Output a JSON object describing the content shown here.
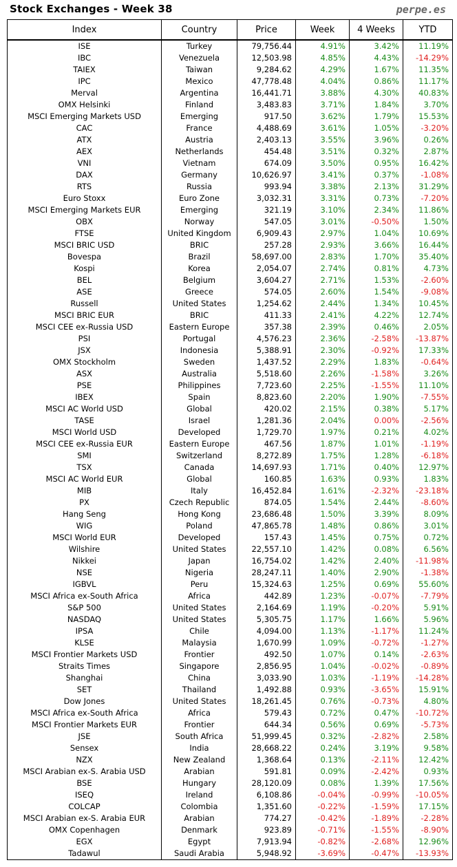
{
  "header": {
    "title": "Stock Exchanges - Week 38",
    "site": "perpe.es"
  },
  "colors": {
    "positive": "#1a8c1a",
    "negative": "#e02020"
  },
  "table": {
    "columns": [
      "Index",
      "Country",
      "Price",
      "Week",
      "4 Weeks",
      "YTD"
    ],
    "rows": [
      [
        "ISE",
        "Turkey",
        "79,756.44",
        "4.91%",
        "3.42%",
        "11.19%"
      ],
      [
        "IBC",
        "Venezuela",
        "12,503.98",
        "4.85%",
        "4.43%",
        "-14.29%"
      ],
      [
        "TAIEX",
        "Taiwan",
        "9,284.62",
        "4.29%",
        "1.67%",
        "11.35%"
      ],
      [
        "IPC",
        "Mexico",
        "47,778.48",
        "4.04%",
        "0.86%",
        "11.17%"
      ],
      [
        "Merval",
        "Argentina",
        "16,441.71",
        "3.88%",
        "4.30%",
        "40.83%"
      ],
      [
        "OMX Helsinki",
        "Finland",
        "3,483.83",
        "3.71%",
        "1.84%",
        "3.70%"
      ],
      [
        "MSCI Emerging Markets USD",
        "Emerging",
        "917.50",
        "3.62%",
        "1.79%",
        "15.53%"
      ],
      [
        "CAC",
        "France",
        "4,488.69",
        "3.61%",
        "1.05%",
        "-3.20%"
      ],
      [
        "ATX",
        "Austria",
        "2,403.13",
        "3.55%",
        "3.96%",
        "0.26%"
      ],
      [
        "AEX",
        "Netherlands",
        "454.48",
        "3.51%",
        "0.32%",
        "2.87%"
      ],
      [
        "VNI",
        "Vietnam",
        "674.09",
        "3.50%",
        "0.95%",
        "16.42%"
      ],
      [
        "DAX",
        "Germany",
        "10,626.97",
        "3.41%",
        "0.37%",
        "-1.08%"
      ],
      [
        "RTS",
        "Russia",
        "993.94",
        "3.38%",
        "2.13%",
        "31.29%"
      ],
      [
        "Euro Stoxx",
        "Euro Zone",
        "3,032.31",
        "3.31%",
        "0.73%",
        "-7.20%"
      ],
      [
        "MSCI Emerging Markets EUR",
        "Emerging",
        "321.19",
        "3.10%",
        "2.34%",
        "11.86%"
      ],
      [
        "OBX",
        "Norway",
        "547.05",
        "3.01%",
        "-0.50%",
        "1.50%"
      ],
      [
        "FTSE",
        "United Kingdom",
        "6,909.43",
        "2.97%",
        "1.04%",
        "10.69%"
      ],
      [
        "MSCI BRIC USD",
        "BRIC",
        "257.28",
        "2.93%",
        "3.66%",
        "16.44%"
      ],
      [
        "Bovespa",
        "Brazil",
        "58,697.00",
        "2.83%",
        "1.70%",
        "35.40%"
      ],
      [
        "Kospi",
        "Korea",
        "2,054.07",
        "2.74%",
        "0.81%",
        "4.73%"
      ],
      [
        "BEL",
        "Belgium",
        "3,604.27",
        "2.71%",
        "1.53%",
        "-2.60%"
      ],
      [
        "ASE",
        "Greece",
        "574.05",
        "2.60%",
        "1.54%",
        "-9.08%"
      ],
      [
        "Russell",
        "United States",
        "1,254.62",
        "2.44%",
        "1.34%",
        "10.45%"
      ],
      [
        "MSCI BRIC EUR",
        "BRIC",
        "411.33",
        "2.41%",
        "4.22%",
        "12.74%"
      ],
      [
        "MSCI CEE ex-Russia USD",
        "Eastern Europe",
        "357.38",
        "2.39%",
        "0.46%",
        "2.05%"
      ],
      [
        "PSI",
        "Portugal",
        "4,576.23",
        "2.36%",
        "-2.58%",
        "-13.87%"
      ],
      [
        "JSX",
        "Indonesia",
        "5,388.91",
        "2.30%",
        "-0.92%",
        "17.33%"
      ],
      [
        "OMX Stockholm",
        "Sweden",
        "1,437.52",
        "2.29%",
        "1.83%",
        "-0.64%"
      ],
      [
        "ASX",
        "Australia",
        "5,518.60",
        "2.26%",
        "-1.58%",
        "3.26%"
      ],
      [
        "PSE",
        "Philippines",
        "7,723.60",
        "2.25%",
        "-1.55%",
        "11.10%"
      ],
      [
        "IBEX",
        "Spain",
        "8,823.60",
        "2.20%",
        "1.90%",
        "-7.55%"
      ],
      [
        "MSCI AC World USD",
        "Global",
        "420.02",
        "2.15%",
        "0.38%",
        "5.17%"
      ],
      [
        "TASE",
        "Israel",
        "1,281.36",
        "2.04%",
        "0.00%",
        "-2.56%"
      ],
      [
        "MSCI World USD",
        "Developed",
        "1,729.70",
        "1.97%",
        "0.21%",
        "4.02%"
      ],
      [
        "MSCI CEE ex-Russia EUR",
        "Eastern Europe",
        "467.56",
        "1.87%",
        "1.01%",
        "-1.19%"
      ],
      [
        "SMI",
        "Switzerland",
        "8,272.89",
        "1.75%",
        "1.28%",
        "-6.18%"
      ],
      [
        "TSX",
        "Canada",
        "14,697.93",
        "1.71%",
        "0.40%",
        "12.97%"
      ],
      [
        "MSCI AC World EUR",
        "Global",
        "160.85",
        "1.63%",
        "0.93%",
        "1.83%"
      ],
      [
        "MIB",
        "Italy",
        "16,452.84",
        "1.61%",
        "-2.32%",
        "-23.18%"
      ],
      [
        "PX",
        "Czech Republic",
        "874.05",
        "1.54%",
        "2.44%",
        "-8.60%"
      ],
      [
        "Hang Seng",
        "Hong Kong",
        "23,686.48",
        "1.50%",
        "3.39%",
        "8.09%"
      ],
      [
        "WIG",
        "Poland",
        "47,865.78",
        "1.48%",
        "0.86%",
        "3.01%"
      ],
      [
        "MSCI World EUR",
        "Developed",
        "157.43",
        "1.45%",
        "0.75%",
        "0.72%"
      ],
      [
        "Wilshire",
        "United States",
        "22,557.10",
        "1.42%",
        "0.08%",
        "6.56%"
      ],
      [
        "Nikkei",
        "Japan",
        "16,754.02",
        "1.42%",
        "2.40%",
        "-11.98%"
      ],
      [
        "NSE",
        "Nigeria",
        "28,247.11",
        "1.40%",
        "2.90%",
        "-1.38%"
      ],
      [
        "IGBVL",
        "Peru",
        "15,324.63",
        "1.25%",
        "0.69%",
        "55.60%"
      ],
      [
        "MSCI Africa ex-South Africa",
        "Africa",
        "442.89",
        "1.23%",
        "-0.07%",
        "-7.79%"
      ],
      [
        "S&P 500",
        "United States",
        "2,164.69",
        "1.19%",
        "-0.20%",
        "5.91%"
      ],
      [
        "NASDAQ",
        "United States",
        "5,305.75",
        "1.17%",
        "1.66%",
        "5.96%"
      ],
      [
        "IPSA",
        "Chile",
        "4,094.00",
        "1.13%",
        "-1.17%",
        "11.24%"
      ],
      [
        "KLSE",
        "Malaysia",
        "1,670.99",
        "1.09%",
        "-0.72%",
        "-1.27%"
      ],
      [
        "MSCI Frontier Markets USD",
        "Frontier",
        "492.50",
        "1.07%",
        "0.14%",
        "-2.63%"
      ],
      [
        "Straits Times",
        "Singapore",
        "2,856.95",
        "1.04%",
        "-0.02%",
        "-0.89%"
      ],
      [
        "Shanghai",
        "China",
        "3,033.90",
        "1.03%",
        "-1.19%",
        "-14.28%"
      ],
      [
        "SET",
        "Thailand",
        "1,492.88",
        "0.93%",
        "-3.65%",
        "15.91%"
      ],
      [
        "Dow Jones",
        "United States",
        "18,261.45",
        "0.76%",
        "-0.73%",
        "4.80%"
      ],
      [
        "MSCI Africa ex-South Africa",
        "Africa",
        "579.43",
        "0.72%",
        "0.47%",
        "-10.72%"
      ],
      [
        "MSCI Frontier Markets EUR",
        "Frontier",
        "644.34",
        "0.56%",
        "0.69%",
        "-5.73%"
      ],
      [
        "JSE",
        "South Africa",
        "51,999.45",
        "0.32%",
        "-2.82%",
        "2.58%"
      ],
      [
        "Sensex",
        "India",
        "28,668.22",
        "0.24%",
        "3.19%",
        "9.58%"
      ],
      [
        "NZX",
        "New Zealand",
        "1,368.64",
        "0.13%",
        "-2.11%",
        "12.42%"
      ],
      [
        "MSCI Arabian ex-S. Arabia USD",
        "Arabian",
        "591.81",
        "0.09%",
        "-2.42%",
        "0.93%"
      ],
      [
        "BSE",
        "Hungary",
        "28,120.09",
        "0.08%",
        "1.39%",
        "17.56%"
      ],
      [
        "ISEQ",
        "Ireland",
        "6,108.86",
        "-0.04%",
        "-0.99%",
        "-10.05%"
      ],
      [
        "COLCAP",
        "Colombia",
        "1,351.60",
        "-0.22%",
        "-1.59%",
        "17.15%"
      ],
      [
        "MSCI Arabian ex-S. Arabia EUR",
        "Arabian",
        "774.27",
        "-0.42%",
        "-1.89%",
        "-2.28%"
      ],
      [
        "OMX Copenhagen",
        "Denmark",
        "923.89",
        "-0.71%",
        "-1.55%",
        "-8.90%"
      ],
      [
        "EGX",
        "Egypt",
        "7,913.94",
        "-0.82%",
        "-2.68%",
        "12.96%"
      ],
      [
        "Tadawul",
        "Saudi Arabia",
        "5,948.92",
        "-3.69%",
        "-0.47%",
        "-13.93%"
      ]
    ]
  }
}
